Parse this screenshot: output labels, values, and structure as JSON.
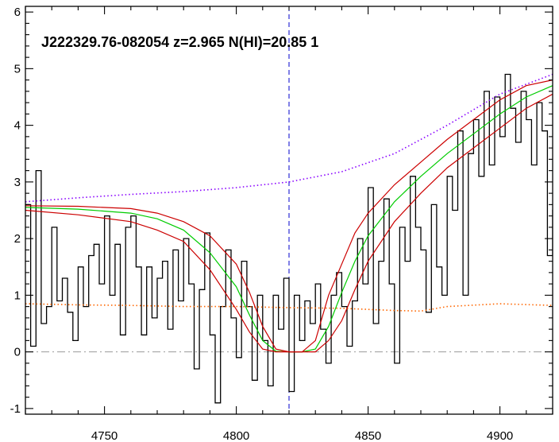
{
  "chart_data": {
    "type": "line",
    "title": "J222329.76-082054 z=2.965 N(HI)=20.85 1",
    "xlabel": "",
    "ylabel": "",
    "xlim": [
      4720,
      4920
    ],
    "ylim": [
      -1.1,
      6.1
    ],
    "x_ticks": [
      4750,
      4800,
      4850,
      4900
    ],
    "y_ticks": [
      -1,
      0,
      1,
      2,
      3,
      4,
      5,
      6
    ],
    "grid": false,
    "legend": "none",
    "reference_lines": [
      {
        "kind": "vertical",
        "x": 4820,
        "color": "#0000cc",
        "style": "dashed"
      },
      {
        "kind": "horizontal",
        "y": 0,
        "color": "#999999",
        "style": "dash-dot"
      }
    ],
    "series": [
      {
        "role": "flux",
        "style": "step",
        "color": "#000000",
        "x": [
          4720,
          4722,
          4724,
          4726,
          4728,
          4730,
          4732,
          4734,
          4736,
          4738,
          4740,
          4742,
          4744,
          4746,
          4748,
          4750,
          4752,
          4754,
          4756,
          4758,
          4760,
          4762,
          4764,
          4766,
          4768,
          4770,
          4772,
          4774,
          4776,
          4778,
          4780,
          4782,
          4784,
          4786,
          4788,
          4790,
          4792,
          4794,
          4796,
          4798,
          4800,
          4802,
          4804,
          4806,
          4808,
          4810,
          4812,
          4814,
          4816,
          4818,
          4820,
          4822,
          4824,
          4826,
          4828,
          4830,
          4832,
          4834,
          4836,
          4838,
          4840,
          4842,
          4844,
          4846,
          4848,
          4850,
          4852,
          4854,
          4856,
          4858,
          4860,
          4862,
          4864,
          4866,
          4868,
          4870,
          4872,
          4874,
          4876,
          4878,
          4880,
          4882,
          4884,
          4886,
          4888,
          4890,
          4892,
          4894,
          4896,
          4898,
          4900,
          4902,
          4904,
          4906,
          4908,
          4910,
          4912,
          4914,
          4916,
          4918,
          4920
        ],
        "values": [
          2.6,
          0.1,
          3.2,
          0.5,
          0.8,
          2.2,
          0.9,
          1.3,
          0.7,
          0.2,
          1.5,
          0.8,
          1.7,
          1.9,
          1.2,
          2.4,
          1.0,
          1.9,
          0.3,
          2.2,
          2.4,
          1.5,
          0.3,
          1.5,
          0.6,
          1.3,
          1.6,
          0.4,
          1.8,
          0.9,
          2.0,
          1.2,
          -0.3,
          1.1,
          2.1,
          0.3,
          -0.9,
          0.8,
          1.8,
          0.6,
          -0.1,
          1.6,
          0.8,
          -0.5,
          1.0,
          0.2,
          -0.6,
          1.0,
          0.4,
          1.3,
          -0.7,
          1.0,
          0.2,
          0.9,
          0.5,
          1.2,
          0.4,
          -0.2,
          1.0,
          1.4,
          0.8,
          0.1,
          0.9,
          2.0,
          1.2,
          2.9,
          0.5,
          1.6,
          2.7,
          1.2,
          -0.2,
          2.2,
          1.6,
          3.1,
          2.2,
          1.8,
          0.7,
          2.6,
          1.5,
          1.0,
          3.1,
          2.5,
          3.9,
          1.0,
          3.5,
          4.1,
          3.1,
          4.6,
          3.3,
          4.5,
          3.8,
          4.9,
          4.3,
          3.7,
          4.6,
          4.1,
          3.3,
          4.4,
          3.9,
          1.7,
          2.5
        ]
      },
      {
        "role": "continuum",
        "style": "dotted",
        "color": "#8800ff",
        "x": [
          4720,
          4740,
          4760,
          4780,
          4800,
          4820,
          4840,
          4860,
          4880,
          4900,
          4920
        ],
        "values": [
          2.65,
          2.72,
          2.78,
          2.83,
          2.9,
          3.0,
          3.18,
          3.5,
          4.0,
          4.55,
          4.9
        ]
      },
      {
        "role": "noise",
        "style": "dotted",
        "color": "#ff6600",
        "x": [
          4720,
          4740,
          4760,
          4780,
          4800,
          4820,
          4840,
          4860,
          4870,
          4880,
          4900,
          4920
        ],
        "values": [
          0.85,
          0.83,
          0.82,
          0.8,
          0.8,
          0.78,
          0.77,
          0.73,
          0.72,
          0.8,
          0.85,
          0.82
        ]
      },
      {
        "role": "dla-fit",
        "style": "solid",
        "color": "#00cc00",
        "x": [
          4720,
          4740,
          4760,
          4770,
          4780,
          4790,
          4800,
          4805,
          4810,
          4815,
          4820,
          4825,
          4830,
          4835,
          4840,
          4845,
          4850,
          4860,
          4870,
          4880,
          4890,
          4900,
          4910,
          4920
        ],
        "values": [
          2.55,
          2.52,
          2.45,
          2.35,
          2.15,
          1.75,
          1.15,
          0.65,
          0.2,
          0.01,
          0.0,
          0.0,
          0.05,
          0.45,
          1.05,
          1.6,
          2.05,
          2.65,
          3.1,
          3.5,
          3.85,
          4.2,
          4.5,
          4.7
        ]
      },
      {
        "role": "fit-upper",
        "style": "solid",
        "color": "#cc0000",
        "x": [
          4720,
          4740,
          4760,
          4770,
          4780,
          4790,
          4800,
          4805,
          4810,
          4815,
          4820,
          4825,
          4830,
          4835,
          4840,
          4845,
          4850,
          4860,
          4870,
          4880,
          4890,
          4900,
          4910,
          4920
        ],
        "values": [
          2.58,
          2.57,
          2.53,
          2.45,
          2.3,
          2.05,
          1.55,
          1.05,
          0.45,
          0.05,
          0.0,
          0.0,
          0.2,
          1.0,
          1.55,
          2.1,
          2.45,
          2.95,
          3.35,
          3.75,
          4.1,
          4.45,
          4.7,
          4.8
        ]
      },
      {
        "role": "fit-lower",
        "style": "solid",
        "color": "#cc0000",
        "x": [
          4720,
          4740,
          4760,
          4770,
          4780,
          4790,
          4800,
          4805,
          4810,
          4815,
          4820,
          4825,
          4830,
          4835,
          4840,
          4845,
          4850,
          4860,
          4870,
          4880,
          4890,
          4900,
          4910,
          4920
        ],
        "values": [
          2.5,
          2.42,
          2.3,
          2.15,
          1.95,
          1.45,
          0.75,
          0.35,
          0.05,
          0.0,
          0.0,
          0.0,
          0.0,
          0.2,
          0.55,
          1.1,
          1.6,
          2.3,
          2.8,
          3.25,
          3.6,
          3.95,
          4.3,
          4.55
        ]
      }
    ]
  }
}
